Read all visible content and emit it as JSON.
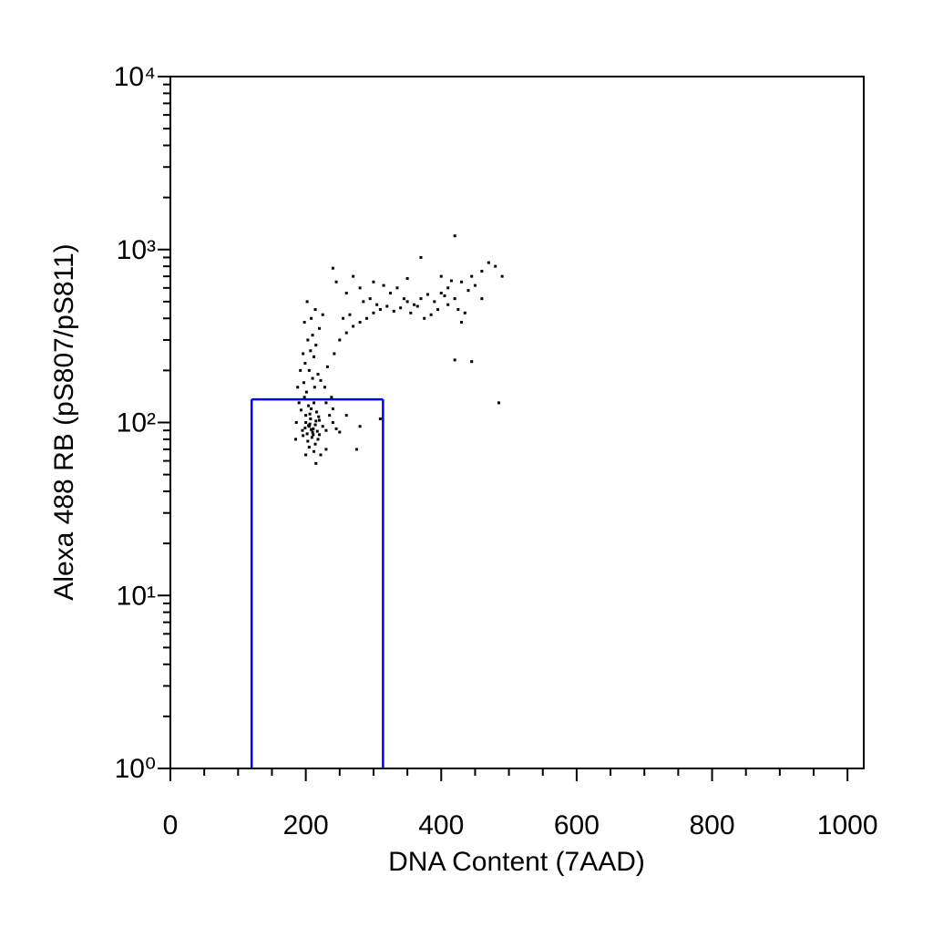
{
  "chart_data": {
    "type": "scatter",
    "xlabel": "DNA Content  (7AAD)",
    "ylabel": "Alexa 488 RB (pS807/pS811)",
    "xlim": [
      0,
      1024
    ],
    "ylim": [
      1,
      10000
    ],
    "yscale": "log",
    "xticks": [
      0,
      200,
      400,
      600,
      800,
      1000
    ],
    "xminorticks": [
      50,
      100,
      150,
      250,
      300,
      350,
      450,
      500,
      550,
      650,
      700,
      750,
      850,
      900,
      950
    ],
    "yticks": [
      {
        "value": 1,
        "label": "10⁰"
      },
      {
        "value": 10,
        "label": "10¹"
      },
      {
        "value": 100,
        "label": "10²"
      },
      {
        "value": 1000,
        "label": "10³"
      },
      {
        "value": 10000,
        "label": "10⁴"
      }
    ],
    "yminorticks": [
      2,
      3,
      4,
      5,
      6,
      7,
      8,
      9,
      20,
      30,
      40,
      50,
      60,
      70,
      80,
      90,
      200,
      300,
      400,
      500,
      600,
      700,
      800,
      900,
      2000,
      3000,
      4000,
      5000,
      6000,
      7000,
      8000,
      9000
    ],
    "color": "#000000",
    "gate": {
      "x": [
        120,
        314
      ],
      "y": [
        1,
        136
      ],
      "color": "#0000ff"
    },
    "x": [
      205,
      210,
      200,
      215,
      208,
      195,
      220,
      212,
      203,
      198,
      225,
      207,
      211,
      216,
      200,
      209,
      204,
      219,
      193,
      214,
      206,
      230,
      201,
      213,
      197,
      210,
      205,
      218,
      199,
      212,
      207,
      215,
      203,
      210,
      220,
      198,
      208,
      225,
      214,
      202,
      230,
      235,
      240,
      245,
      250,
      238,
      228,
      222,
      232,
      242,
      250,
      260,
      270,
      255,
      265,
      280,
      290,
      300,
      310,
      320,
      285,
      295,
      305,
      330,
      340,
      350,
      360,
      370,
      380,
      390,
      400,
      410,
      395,
      385,
      375,
      365,
      355,
      345,
      335,
      325,
      315,
      300,
      280,
      260,
      245,
      240,
      270,
      350,
      370,
      420,
      400,
      430,
      440,
      450,
      420,
      410,
      425,
      435,
      405,
      415,
      445,
      460,
      470,
      480,
      490,
      460,
      430,
      420,
      445,
      485,
      200,
      215,
      185,
      190,
      186,
      188,
      192,
      196,
      240,
      260,
      280,
      275,
      310,
      230,
      222,
      205,
      212,
      218,
      196,
      202,
      208,
      214,
      220,
      206,
      211,
      199,
      217,
      204
    ],
    "y": [
      95,
      88,
      110,
      102,
      120,
      90,
      85,
      130,
      78,
      140,
      95,
      105,
      92,
      115,
      100,
      82,
      125,
      108,
      118,
      75,
      98,
      90,
      150,
      160,
      170,
      180,
      200,
      190,
      220,
      240,
      260,
      280,
      300,
      320,
      350,
      380,
      400,
      420,
      450,
      500,
      130,
      110,
      100,
      92,
      88,
      140,
      160,
      175,
      210,
      250,
      300,
      330,
      360,
      400,
      420,
      380,
      400,
      430,
      450,
      470,
      500,
      520,
      480,
      440,
      460,
      500,
      480,
      520,
      550,
      500,
      560,
      600,
      450,
      420,
      400,
      470,
      430,
      520,
      600,
      560,
      620,
      650,
      600,
      560,
      650,
      780,
      700,
      680,
      900,
      1200,
      700,
      650,
      580,
      620,
      520,
      480,
      450,
      430,
      540,
      660,
      700,
      750,
      840,
      800,
      700,
      520,
      380,
      230,
      225,
      130,
      65,
      58,
      80,
      130,
      100,
      160,
      200,
      250,
      120,
      110,
      95,
      70,
      105,
      70,
      65,
      72,
      68,
      80,
      84,
      86,
      91,
      97,
      103,
      112,
      85,
      93,
      89,
      96
    ]
  }
}
